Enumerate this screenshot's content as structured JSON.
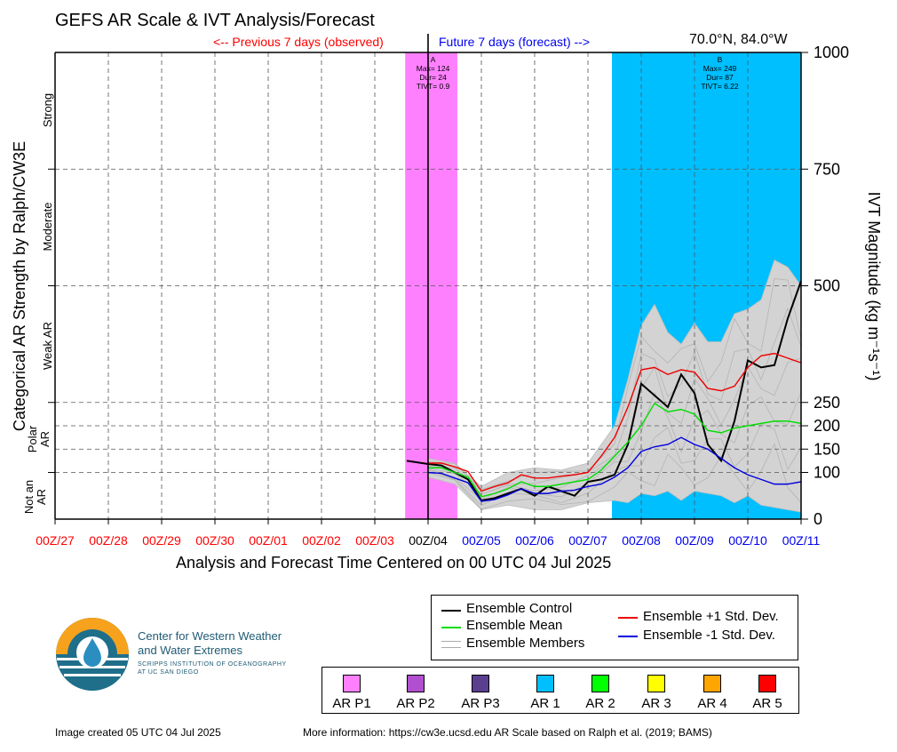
{
  "title": "GEFS AR Scale & IVT Analysis/Forecast",
  "prev_label": "<-- Previous 7 days (observed)",
  "future_label": "Future 7 days (forecast) -->",
  "location": "70.0°N, 84.0°W",
  "xaxis_label": "Analysis and Forecast Time Centered on 00 UTC 04 Jul 2025",
  "left_axis_label": "Categorical AR Strength by Ralph/CW3E",
  "right_axis_label": "IVT Magnitude (kg m⁻¹s⁻¹)",
  "footer_created": "Image created 05 UTC 04 Jul 2025",
  "footer_more": "More information: https://cw3e.ucsd.edu AR Scale based on Ralph et al. (2019; BAMS)",
  "logo": {
    "line1": "Center for Western Weather",
    "line2": "and Water Extremes",
    "sub1": "SCRIPPS INSTITUTION OF OCEANOGRAPHY",
    "sub2": "AT UC SAN DIEGO"
  },
  "legend": {
    "control": "Ensemble Control",
    "mean": "Ensemble Mean",
    "members": "Ensemble Members",
    "plus": "Ensemble +1 Std. Dev.",
    "minus": "Ensemble -1 Std. Dev."
  },
  "categories": [
    {
      "label": "AR P1",
      "color": "#ff80ff"
    },
    {
      "label": "AR P2",
      "color": "#b04fd0"
    },
    {
      "label": "AR P3",
      "color": "#5a3f8f"
    },
    {
      "label": "AR 1",
      "color": "#00bfff"
    },
    {
      "label": "AR 2",
      "color": "#00ff00"
    },
    {
      "label": "AR 3",
      "color": "#ffff00"
    },
    {
      "label": "AR 4",
      "color": "#ffa500"
    },
    {
      "label": "AR 5",
      "color": "#ff0000"
    }
  ],
  "chart_data": {
    "type": "line",
    "title": "GEFS AR Scale & IVT Analysis/Forecast",
    "xlabel": "Analysis and Forecast Time Centered on 00 UTC 04 Jul 2025",
    "ylabel": "IVT Magnitude (kg m⁻¹s⁻¹)",
    "xlim": [
      0,
      14
    ],
    "ylim": [
      0,
      1000
    ],
    "x_ticks": [
      "00Z/27",
      "00Z/28",
      "00Z/29",
      "00Z/30",
      "00Z/01",
      "00Z/02",
      "00Z/03",
      "00Z/04",
      "00Z/05",
      "00Z/06",
      "00Z/07",
      "00Z/08",
      "00Z/09",
      "00Z/10",
      "00Z/11"
    ],
    "x_tick_colors": [
      "#ff0000",
      "#ff0000",
      "#ff0000",
      "#ff0000",
      "#ff0000",
      "#ff0000",
      "#ff0000",
      "#000000",
      "#0000ee",
      "#0000ee",
      "#0000ee",
      "#0000ee",
      "#0000ee",
      "#0000ee",
      "#0000ee"
    ],
    "y_ticks": [
      0,
      100,
      150,
      200,
      250,
      500,
      750,
      1000
    ],
    "category_labels": [
      {
        "label": "Strong",
        "range": [
          750,
          1000
        ]
      },
      {
        "label": "Moderate",
        "range": [
          500,
          750
        ]
      },
      {
        "label": "Weak AR",
        "range": [
          250,
          500
        ]
      },
      {
        "label": "Polar AR",
        "range": [
          100,
          250
        ]
      },
      {
        "label": "Not an AR",
        "range": [
          0,
          100
        ]
      }
    ],
    "ar_events": [
      {
        "id": "A",
        "x_range": [
          6.57,
          7.55
        ],
        "color": "#ff80ff",
        "lines": [
          "A",
          "Max= 124",
          "Dur= 24",
          "TIVT= 0.9"
        ]
      },
      {
        "id": "B",
        "x_range": [
          10.45,
          14.0
        ],
        "color": "#00bfff",
        "lines": [
          "B",
          "Max= 249",
          "Dur= 87",
          "TIVT= 6.22"
        ]
      }
    ],
    "now_x": 7.0,
    "series": [
      {
        "name": "Ensemble Control",
        "color": "#000000",
        "x": [
          6.6,
          7.0,
          7.25,
          7.5,
          7.75,
          8.0,
          8.25,
          8.5,
          8.75,
          9.0,
          9.25,
          9.5,
          9.75,
          10.0,
          10.25,
          10.5,
          10.75,
          11.0,
          11.25,
          11.5,
          11.75,
          12.0,
          12.25,
          12.5,
          12.75,
          13.0,
          13.25,
          13.5,
          13.75,
          14.0
        ],
        "y": [
          125,
          118,
          115,
          100,
          85,
          40,
          45,
          55,
          65,
          50,
          70,
          60,
          50,
          80,
          85,
          95,
          160,
          290,
          265,
          240,
          310,
          270,
          160,
          125,
          210,
          340,
          325,
          330,
          430,
          510
        ]
      },
      {
        "name": "Ensemble Mean",
        "color": "#00dd00",
        "x": [
          7.0,
          7.25,
          7.5,
          7.75,
          8.0,
          8.25,
          8.5,
          8.75,
          9.0,
          9.25,
          9.5,
          9.75,
          10.0,
          10.25,
          10.5,
          10.75,
          11.0,
          11.25,
          11.5,
          11.75,
          12.0,
          12.25,
          12.5,
          12.75,
          13.0,
          13.25,
          13.5,
          13.75,
          14.0
        ],
        "y": [
          110,
          110,
          100,
          90,
          48,
          55,
          65,
          80,
          70,
          70,
          75,
          80,
          85,
          105,
          135,
          165,
          200,
          248,
          230,
          235,
          225,
          190,
          185,
          195,
          200,
          205,
          210,
          210,
          205
        ]
      },
      {
        "name": "Ensemble +1 Std. Dev.",
        "color": "#ee0000",
        "x": [
          7.0,
          7.25,
          7.5,
          7.75,
          8.0,
          8.25,
          8.5,
          8.75,
          9.0,
          9.25,
          9.5,
          9.75,
          10.0,
          10.25,
          10.5,
          10.75,
          11.0,
          11.25,
          11.5,
          11.75,
          12.0,
          12.25,
          12.5,
          12.75,
          13.0,
          13.25,
          13.5,
          13.75,
          14.0
        ],
        "y": [
          120,
          120,
          112,
          102,
          60,
          70,
          78,
          95,
          88,
          88,
          92,
          95,
          100,
          135,
          175,
          240,
          320,
          325,
          310,
          320,
          315,
          280,
          275,
          285,
          325,
          350,
          355,
          345,
          335
        ]
      },
      {
        "name": "Ensemble -1 Std. Dev.",
        "color": "#0000dd",
        "x": [
          7.0,
          7.25,
          7.5,
          7.75,
          8.0,
          8.25,
          8.5,
          8.75,
          9.0,
          9.25,
          9.5,
          9.75,
          10.0,
          10.25,
          10.5,
          10.75,
          11.0,
          11.25,
          11.5,
          11.75,
          12.0,
          12.25,
          12.5,
          12.75,
          13.0,
          13.25,
          13.5,
          13.75,
          14.0
        ],
        "y": [
          100,
          98,
          88,
          78,
          38,
          42,
          52,
          65,
          55,
          55,
          60,
          62,
          70,
          75,
          90,
          110,
          145,
          155,
          160,
          175,
          160,
          150,
          130,
          110,
          95,
          85,
          75,
          75,
          80
        ]
      }
    ],
    "members_envelope": {
      "x": [
        7.0,
        7.5,
        8.0,
        8.5,
        9.0,
        9.5,
        10.0,
        10.5,
        10.75,
        11.0,
        11.25,
        11.5,
        11.75,
        12.0,
        12.25,
        12.5,
        12.75,
        13.0,
        13.25,
        13.5,
        13.75,
        14.0
      ],
      "upper": [
        130,
        120,
        70,
        100,
        110,
        105,
        120,
        200,
        300,
        415,
        460,
        400,
        375,
        420,
        380,
        380,
        440,
        450,
        470,
        555,
        540,
        500
      ],
      "lower": [
        90,
        75,
        20,
        30,
        20,
        20,
        35,
        40,
        35,
        55,
        50,
        60,
        40,
        60,
        55,
        50,
        35,
        50,
        30,
        25,
        20,
        15
      ]
    }
  }
}
